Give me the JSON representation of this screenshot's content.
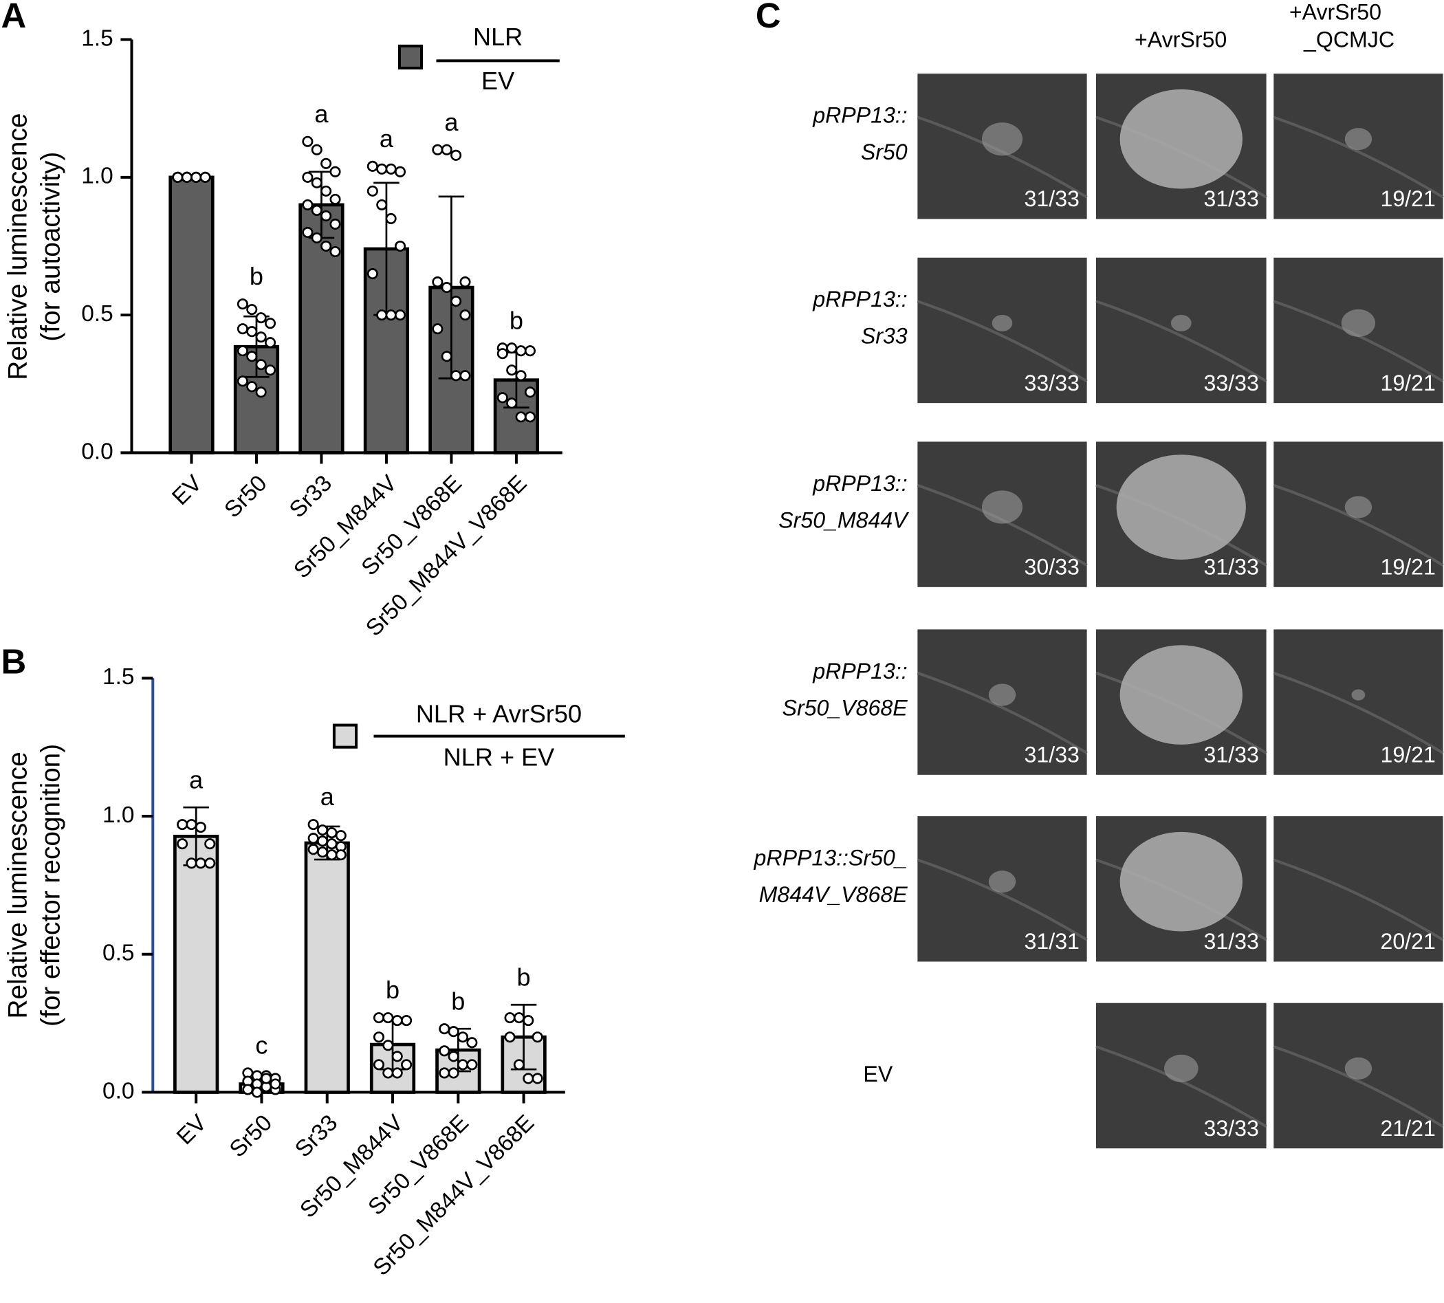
{
  "chart_data": [
    {
      "type": "bar",
      "panel": "A",
      "ylabel": [
        "Relative luminescence",
        "(for autoactivity)"
      ],
      "legend": {
        "numerator": "NLR",
        "denominator": "EV"
      },
      "color": "#5e5e5e",
      "categories": [
        "EV",
        "Sr50",
        "Sr33",
        "Sr50_M844V",
        "Sr50_V868E",
        "Sr50_M844V_V868E"
      ],
      "values": [
        1.0,
        0.385,
        0.9,
        0.74,
        0.6,
        0.264
      ],
      "errors": [
        0,
        0.11,
        0.12,
        0.24,
        0.33,
        0.1
      ],
      "letters": [
        null,
        "b",
        "a",
        "a",
        "a",
        "b"
      ],
      "points": [
        [
          1,
          1,
          1,
          1,
          1,
          1,
          1,
          1,
          1,
          1
        ],
        [
          0.54,
          0.52,
          0.49,
          0.47,
          0.45,
          0.44,
          0.42,
          0.4,
          0.37,
          0.35,
          0.32,
          0.3,
          0.26,
          0.24,
          0.22
        ],
        [
          1.13,
          1.1,
          1.05,
          1.02,
          1.0,
          0.98,
          0.95,
          0.92,
          0.9,
          0.88,
          0.86,
          0.83,
          0.8,
          0.78,
          0.75,
          0.73
        ],
        [
          1.04,
          1.03,
          1.03,
          1.02,
          0.95,
          0.9,
          0.85,
          0.75,
          0.65,
          0.5,
          0.5,
          0.5
        ],
        [
          1.1,
          1.1,
          1.08,
          0.62,
          0.62,
          0.6,
          0.55,
          0.5,
          0.45,
          0.35,
          0.28,
          0.28
        ],
        [
          0.38,
          0.38,
          0.37,
          0.37,
          0.36,
          0.3,
          0.28,
          0.22,
          0.2,
          0.18,
          0.13,
          0.13
        ]
      ],
      "ylim": [
        0,
        1.5
      ],
      "yticks": [
        {
          "value": 0,
          "label": "0.0"
        },
        0.5,
        {
          "value": 1,
          "label": "1.0"
        },
        1.5
      ]
    },
    {
      "type": "bar",
      "panel": "B",
      "ylabel": [
        "Relative luminescence",
        "(for effector recognition)"
      ],
      "legend": {
        "numerator": "NLR + AvrSr50",
        "denominator": "NLR + EV"
      },
      "color": "#d9d9d9",
      "categories": [
        "EV",
        "Sr50",
        "Sr33",
        "Sr50_M844V",
        "Sr50_V868E",
        "Sr50_M844V_V868E"
      ],
      "values": [
        0.927,
        0.03,
        0.903,
        0.173,
        0.153,
        0.2
      ],
      "errors": [
        0.105,
        0.02,
        0.06,
        0.09,
        0.077,
        0.117
      ],
      "letters": [
        "a",
        "c",
        "a",
        "b",
        "b",
        "b"
      ],
      "points": [
        [
          0.97,
          0.97,
          0.96,
          0.9,
          0.9,
          0.83,
          0.83,
          0.83
        ],
        [
          0.07,
          0.06,
          0.06,
          0.05,
          0.04,
          0.03,
          0.02,
          0.01,
          0.01,
          0.0,
          0.05,
          0.03
        ],
        [
          0.97,
          0.95,
          0.94,
          0.93,
          0.92,
          0.91,
          0.9,
          0.89,
          0.88,
          0.87,
          0.86,
          0.86
        ],
        [
          0.27,
          0.27,
          0.26,
          0.26,
          0.2,
          0.17,
          0.13,
          0.1,
          0.1,
          0.07,
          0.07
        ],
        [
          0.23,
          0.22,
          0.2,
          0.18,
          0.15,
          0.13,
          0.1,
          0.1,
          0.07,
          0.07
        ],
        [
          0.27,
          0.27,
          0.26,
          0.2,
          0.2,
          0.1,
          0.05,
          0.05
        ]
      ],
      "ylim": [
        0,
        1.5
      ],
      "yticks": [
        {
          "value": 0,
          "label": "0.0"
        },
        0.5,
        {
          "value": 1,
          "label": "1.0"
        },
        1.5
      ]
    }
  ],
  "panel_c": {
    "panel": "C",
    "columns": [
      [
        "+AvrSr50"
      ],
      [
        "+AvrSr50",
        "_QCMJC"
      ]
    ],
    "rows": [
      {
        "label": [
          "pRPP13::",
          "Sr50"
        ],
        "counts": [
          "31/33",
          "31/33",
          "19/21"
        ]
      },
      {
        "label": [
          "pRPP13::",
          "Sr33"
        ],
        "counts": [
          "33/33",
          "33/33",
          "19/21"
        ]
      },
      {
        "label": [
          "pRPP13::",
          "Sr50_M844V"
        ],
        "counts": [
          "30/33",
          "31/33",
          "19/21"
        ]
      },
      {
        "label": [
          "pRPP13::",
          "Sr50_V868E"
        ],
        "counts": [
          "31/33",
          "31/33",
          "19/21"
        ]
      },
      {
        "label": [
          "pRPP13::Sr50_",
          "M844V_V868E"
        ],
        "counts": [
          "31/31",
          "31/33",
          "20/21"
        ]
      },
      {
        "label": [
          "EV"
        ],
        "counts": [
          null,
          "33/33",
          "21/21"
        ]
      }
    ]
  }
}
